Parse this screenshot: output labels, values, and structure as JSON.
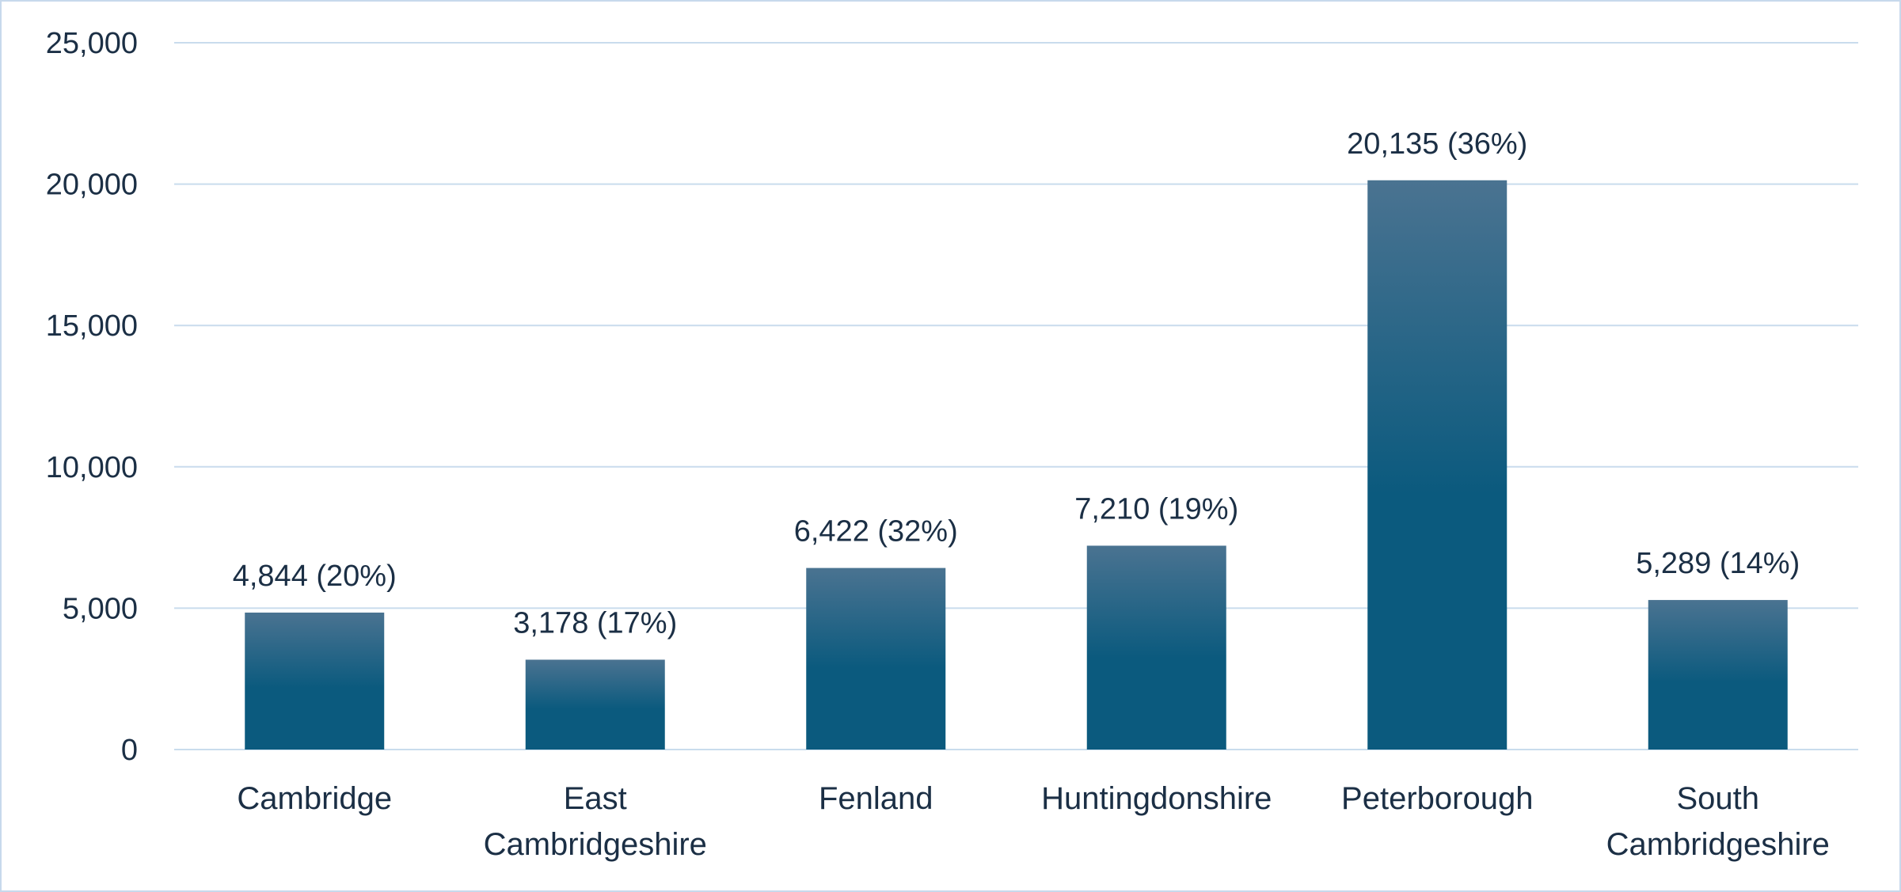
{
  "chart_data": {
    "type": "bar",
    "categories": [
      [
        "Cambridge"
      ],
      [
        "East",
        "Cambridgeshire"
      ],
      [
        "Fenland"
      ],
      [
        "Huntingdonshire"
      ],
      [
        "Peterborough"
      ],
      [
        "South",
        "Cambridgeshire"
      ]
    ],
    "values": [
      4844,
      3178,
      6422,
      7210,
      20135,
      5289
    ],
    "data_labels": [
      "4,844 (20%)",
      "3,178 (17%)",
      "6,422 (32%)",
      "7,210 (19%)",
      "20,135 (36%)",
      "5,289 (14%)"
    ],
    "title": "",
    "xlabel": "",
    "ylabel": "",
    "ylim": [
      0,
      25000
    ],
    "yticks": [
      0,
      5000,
      10000,
      15000,
      20000,
      25000
    ],
    "ytick_labels": [
      "0",
      "5,000",
      "10,000",
      "15,000",
      "20,000",
      "25,000"
    ],
    "grid": true,
    "legend": "none",
    "colors": {
      "bar_top": "#4a7391",
      "bar_bottom": "#0b5a7e",
      "grid": "#c9dced",
      "text": "#1b2f45"
    }
  }
}
